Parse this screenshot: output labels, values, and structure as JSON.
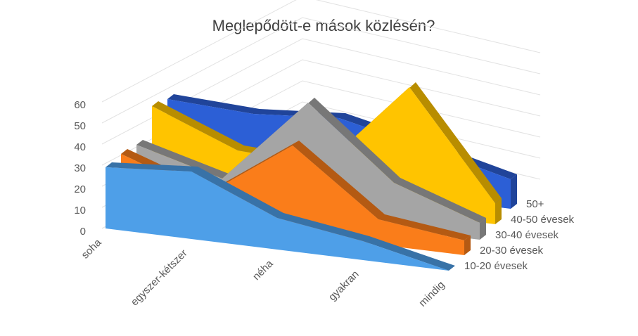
{
  "chart_data": {
    "type": "area3d",
    "title": "Meglepődött-e mások közlésén?",
    "categories": [
      "soha",
      "egyszer-kétszer",
      "néha",
      "gyakran",
      "mindig"
    ],
    "series": [
      {
        "name": "10-20 évesek",
        "color": "#4e9fe8",
        "values": [
          29,
          32,
          15,
          9,
          0
        ]
      },
      {
        "name": "20-30 évesek",
        "color": "#fa7d1a",
        "values": [
          28,
          14,
          42,
          12,
          7
        ]
      },
      {
        "name": "30-40 évesek",
        "color": "#a5a5a5",
        "values": [
          25,
          14,
          55,
          22,
          8
        ]
      },
      {
        "name": "40-50 évesek",
        "color": "#ffc400",
        "values": [
          36,
          20,
          18,
          60,
          10
        ]
      },
      {
        "name": "50+",
        "color": "#2c5fd6",
        "values": [
          32,
          30,
          33,
          24,
          14
        ]
      }
    ],
    "ylim": [
      0,
      60
    ],
    "yticks": [
      0,
      10,
      20,
      30,
      40,
      50,
      60
    ],
    "grid": true
  }
}
